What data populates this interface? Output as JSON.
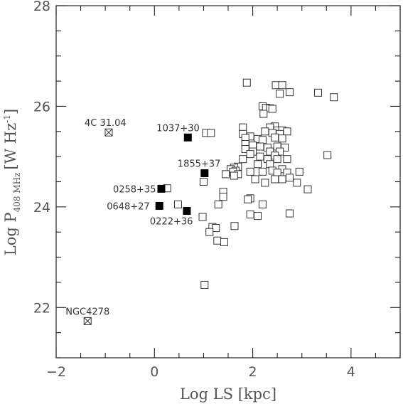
{
  "chart_data": {
    "type": "scatter",
    "xlabel": "Log LS [kpc]",
    "ylabel_main": "Log P",
    "ylabel_sub": "408 MHz",
    "ylabel_unit": "[W Hz",
    "ylabel_exp": "-1",
    "ylabel_close": "]",
    "xlim": [
      -2,
      5
    ],
    "ylim": [
      21,
      28
    ],
    "x_ticks": [
      -2,
      0,
      2,
      4
    ],
    "x_tick_labels": [
      "−2",
      "0",
      "2",
      "4"
    ],
    "y_ticks": [
      22,
      24,
      26,
      28
    ],
    "y_tick_labels": [
      "22",
      "24",
      "26",
      "28"
    ],
    "grid": false,
    "series": [
      {
        "marker": "open-square",
        "points": [
          [
            1.88,
            26.47
          ],
          [
            2.47,
            26.42
          ],
          [
            2.6,
            26.42
          ],
          [
            2.55,
            26.25
          ],
          [
            2.75,
            26.28
          ],
          [
            3.33,
            26.27
          ],
          [
            3.65,
            26.18
          ],
          [
            2.2,
            26.0
          ],
          [
            2.27,
            25.97
          ],
          [
            2.35,
            25.96
          ],
          [
            2.4,
            25.95
          ],
          [
            2.22,
            25.85
          ],
          [
            2.45,
            25.6
          ],
          [
            2.35,
            25.58
          ],
          [
            1.8,
            25.58
          ],
          [
            2.5,
            25.52
          ],
          [
            2.6,
            25.52
          ],
          [
            2.7,
            25.5
          ],
          [
            2.25,
            25.5
          ],
          [
            2.4,
            25.47
          ],
          [
            2.55,
            25.45
          ],
          [
            1.8,
            25.45
          ],
          [
            1.95,
            25.4
          ],
          [
            1.85,
            25.37
          ],
          [
            2.1,
            25.35
          ],
          [
            2.45,
            25.38
          ],
          [
            2.6,
            25.36
          ],
          [
            2.2,
            25.33
          ],
          [
            1.05,
            25.47
          ],
          [
            1.15,
            25.47
          ],
          [
            1.85,
            25.25
          ],
          [
            2.0,
            25.22
          ],
          [
            2.15,
            25.2
          ],
          [
            2.3,
            25.18
          ],
          [
            2.5,
            25.2
          ],
          [
            2.65,
            25.18
          ],
          [
            1.85,
            25.15
          ],
          [
            2.0,
            25.1
          ],
          [
            2.35,
            25.1
          ],
          [
            2.55,
            25.1
          ],
          [
            1.95,
            25.05
          ],
          [
            2.15,
            25.0
          ],
          [
            2.45,
            25.02
          ],
          [
            3.52,
            25.03
          ],
          [
            2.7,
            24.95
          ],
          [
            2.3,
            24.95
          ],
          [
            1.8,
            24.95
          ],
          [
            2.5,
            24.95
          ],
          [
            2.35,
            24.85
          ],
          [
            2.1,
            24.85
          ],
          [
            1.7,
            24.8
          ],
          [
            1.62,
            24.78
          ],
          [
            1.55,
            24.75
          ],
          [
            1.65,
            24.72
          ],
          [
            2.6,
            24.75
          ],
          [
            2.4,
            24.72
          ],
          [
            2.2,
            24.7
          ],
          [
            2.5,
            24.68
          ],
          [
            2.7,
            24.68
          ],
          [
            2.95,
            24.7
          ],
          [
            1.95,
            24.7
          ],
          [
            1.6,
            24.7
          ],
          [
            1.45,
            24.65
          ],
          [
            1.7,
            24.65
          ],
          [
            1.62,
            24.62
          ],
          [
            2.75,
            24.58
          ],
          [
            2.6,
            24.55
          ],
          [
            2.45,
            24.55
          ],
          [
            2.05,
            24.55
          ],
          [
            1.0,
            24.5
          ],
          [
            2.25,
            24.48
          ],
          [
            2.9,
            24.48
          ],
          [
            3.12,
            24.35
          ],
          [
            0.26,
            24.37
          ],
          [
            1.4,
            24.3
          ],
          [
            1.4,
            24.2
          ],
          [
            1.95,
            24.17
          ],
          [
            1.9,
            24.15
          ],
          [
            0.48,
            24.05
          ],
          [
            2.2,
            24.05
          ],
          [
            1.3,
            24.05
          ],
          [
            1.95,
            23.85
          ],
          [
            2.1,
            23.82
          ],
          [
            2.75,
            23.87
          ],
          [
            0.98,
            23.8
          ],
          [
            1.63,
            23.62
          ],
          [
            1.18,
            23.6
          ],
          [
            1.25,
            23.58
          ],
          [
            1.12,
            23.5
          ],
          [
            1.28,
            23.33
          ],
          [
            1.42,
            23.3
          ],
          [
            1.02,
            22.45
          ]
        ]
      },
      {
        "marker": "filled-square",
        "points": [
          [
            0.68,
            25.38
          ],
          [
            1.02,
            24.67
          ],
          [
            0.14,
            24.36
          ],
          [
            0.1,
            24.02
          ],
          [
            0.66,
            23.92
          ]
        ]
      },
      {
        "marker": "crossed-square",
        "points": [
          [
            -0.93,
            25.48
          ],
          [
            -1.36,
            21.73
          ]
        ]
      }
    ],
    "annotations": [
      {
        "text": "4C 31.04",
        "x": -0.93,
        "y": 25.48
      },
      {
        "text": "1037+30",
        "x": 0.68,
        "y": 25.38
      },
      {
        "text": "1855+37",
        "x": 1.02,
        "y": 24.67
      },
      {
        "text": "0258+35",
        "x": 0.14,
        "y": 24.36
      },
      {
        "text": "0648+27",
        "x": 0.1,
        "y": 24.02
      },
      {
        "text": "0222+36",
        "x": 0.66,
        "y": 23.92
      },
      {
        "text": "NGC4278",
        "x": -1.36,
        "y": 21.73
      }
    ]
  }
}
